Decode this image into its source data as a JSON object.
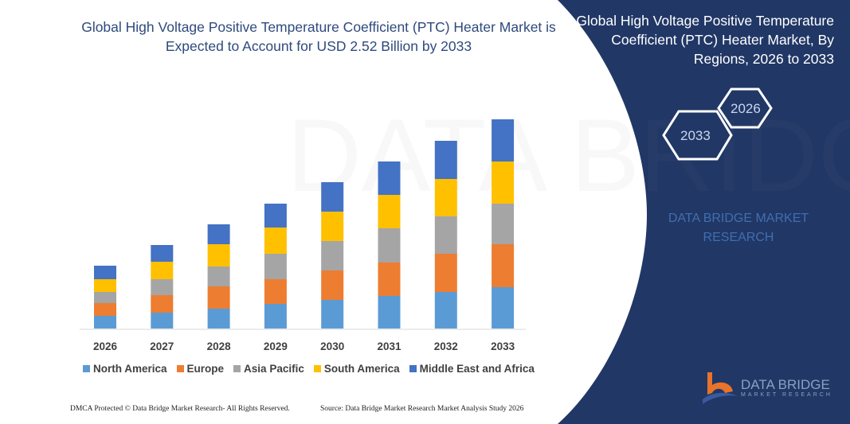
{
  "title": "Global High Voltage Positive Temperature Coefficient (PTC) Heater Market is Expected to Account for USD 2.52 Billion by 2033",
  "side_panel": {
    "title": "Global High Voltage Positive Temperature Coefficient (PTC) Heater Market, By Regions, 2026 to 2033",
    "hex_start": "2026",
    "hex_end": "2033",
    "brand": "DATA BRIDGE MARKET RESEARCH",
    "background_color": "#213766"
  },
  "logo": {
    "name": "DATA BRIDGE",
    "sub": "MARKET RESEARCH"
  },
  "footer": {
    "left": "DMCA Protected © Data Bridge Market Research-  All Rights Reserved.",
    "right": "Source: Data Bridge Market Research  Market Analysis Study 2026"
  },
  "chart_data": {
    "type": "bar",
    "stacked": true,
    "categories": [
      "2026",
      "2027",
      "2028",
      "2029",
      "2030",
      "2031",
      "2032",
      "2033"
    ],
    "series": [
      {
        "name": "North America",
        "color": "#5b9bd5",
        "values": [
          16,
          20,
          25,
          31,
          36,
          41,
          46,
          52
        ]
      },
      {
        "name": "Europe",
        "color": "#ed7d31",
        "values": [
          16,
          22,
          28,
          31,
          37,
          42,
          48,
          54
        ]
      },
      {
        "name": "Asia Pacific",
        "color": "#a5a5a5",
        "values": [
          14,
          20,
          25,
          32,
          37,
          43,
          47,
          51
        ]
      },
      {
        "name": "South America",
        "color": "#ffc000",
        "values": [
          16,
          22,
          28,
          33,
          37,
          42,
          47,
          53
        ]
      },
      {
        "name": "Middle East and Africa",
        "color": "#4472c4",
        "values": [
          17,
          21,
          25,
          30,
          37,
          42,
          48,
          53
        ]
      }
    ],
    "legend": "bottom",
    "grid": false,
    "y_axis_shown": false
  }
}
